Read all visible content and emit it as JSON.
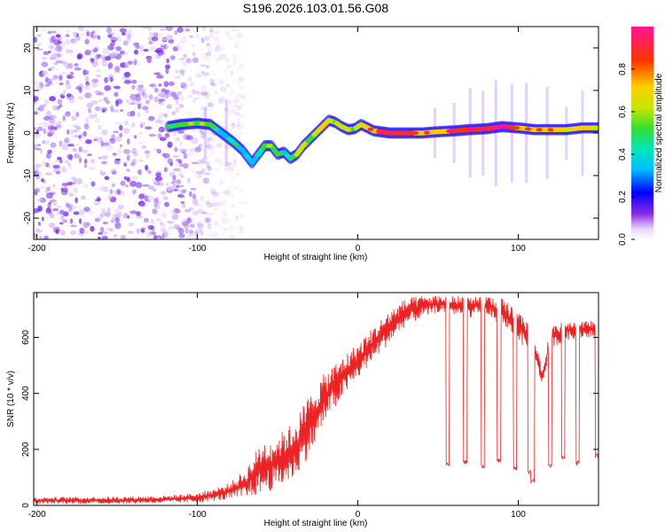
{
  "title": "S196.2026.103.01.56.G08",
  "chart_data": [
    {
      "type": "heatmap",
      "title": "S196.2026.103.01.56.G08",
      "xlabel": "Height of straight line (km)",
      "ylabel": "Frequency (Hz)",
      "xlim": [
        -202,
        150
      ],
      "ylim": [
        -25,
        25
      ],
      "xticks": [
        -200,
        -100,
        0,
        100
      ],
      "xtick_labels": [
        "-200",
        "-100",
        "0",
        "100"
      ],
      "yticks": [
        -20,
        -10,
        0,
        10,
        20
      ],
      "ytick_labels": [
        "-20",
        "-10",
        "0",
        "10",
        "20"
      ],
      "colorbar": {
        "label": "Normalized spectral amplitude",
        "range": [
          0,
          1
        ],
        "ticks": [
          0.0,
          0.2,
          0.4,
          0.6,
          0.8
        ],
        "tick_labels": [
          "0.0",
          "0.2",
          "0.4",
          "0.6",
          "0.8"
        ]
      },
      "ridge": {
        "x": [
          -118,
          -110,
          -100,
          -92,
          -85,
          -78,
          -72,
          -66,
          -62,
          -58,
          -54,
          -50,
          -46,
          -42,
          -38,
          -34,
          -30,
          -26,
          -22,
          -18,
          -14,
          -10,
          -6,
          -2,
          2,
          10,
          20,
          30,
          40,
          50,
          60,
          70,
          80,
          90,
          100,
          110,
          120,
          130,
          140,
          150
        ],
        "y": [
          1.5,
          2,
          2.3,
          2,
          0,
          -2,
          -4,
          -7,
          -5,
          -3,
          -3,
          -5,
          -4.5,
          -6,
          -5,
          -3,
          -1.5,
          0,
          1.5,
          3,
          2.5,
          1.5,
          0.8,
          1,
          2,
          0.5,
          0,
          0,
          0,
          0.3,
          0.5,
          0.8,
          1,
          1.5,
          1.2,
          0.8,
          0.8,
          0.8,
          1.2,
          1.2
        ],
        "amplitude": [
          0.4,
          0.45,
          0.5,
          0.45,
          0.3,
          0.35,
          0.3,
          0.25,
          0.35,
          0.45,
          0.5,
          0.5,
          0.3,
          0.4,
          0.55,
          0.6,
          0.45,
          0.55,
          0.65,
          0.6,
          0.5,
          0.6,
          0.55,
          0.5,
          0.6,
          0.7,
          0.8,
          0.75,
          0.7,
          0.65,
          0.75,
          0.85,
          0.8,
          0.9,
          0.7,
          0.65,
          0.7,
          0.6,
          0.65,
          0.6
        ]
      },
      "noise_region_x": [
        -202,
        -85
      ]
    },
    {
      "type": "line",
      "xlabel": "Height of straight line (km)",
      "ylabel": "SNR (10 * v/v)",
      "xlim": [
        -202,
        150
      ],
      "ylim": [
        0,
        760
      ],
      "xticks": [
        -200,
        -100,
        0,
        100
      ],
      "xtick_labels": [
        "-200",
        "-100",
        "0",
        "100"
      ],
      "yticks": [
        0,
        200,
        400,
        600
      ],
      "ytick_labels": [
        "0",
        "200",
        "400",
        "600"
      ],
      "series": [
        {
          "name": "SNR",
          "color": "#ee2222",
          "envelope": {
            "x": [
              -202,
              -150,
              -120,
              -100,
              -90,
              -80,
              -70,
              -60,
              -50,
              -40,
              -30,
              -20,
              -10,
              0,
              10,
              20,
              30,
              40,
              50,
              60,
              70,
              80,
              90,
              100,
              110,
              115,
              120,
              130,
              140,
              150
            ],
            "min": [
              5,
              5,
              8,
              10,
              15,
              20,
              25,
              40,
              60,
              90,
              180,
              300,
              380,
              450,
              520,
              580,
              640,
              670,
              690,
              680,
              670,
              680,
              640,
              590,
              510,
              430,
              560,
              590,
              600,
              600
            ],
            "max": [
              30,
              32,
              35,
              45,
              60,
              80,
              130,
              230,
              250,
              300,
              400,
              480,
              530,
              580,
              640,
              700,
              740,
              750,
              750,
              750,
              750,
              750,
              740,
              700,
              620,
              480,
              640,
              660,
              660,
              660
            ]
          },
          "dropouts": [
            {
              "x": 56,
              "snr": 140
            },
            {
              "x": 67,
              "snr": 150
            },
            {
              "x": 78,
              "snr": 130
            },
            {
              "x": 88,
              "snr": 150
            },
            {
              "x": 98,
              "snr": 125
            },
            {
              "x": 107,
              "snr": 110
            },
            {
              "x": 109,
              "snr": 80
            },
            {
              "x": 120,
              "snr": 135
            },
            {
              "x": 128,
              "snr": 165
            },
            {
              "x": 137,
              "snr": 145
            },
            {
              "x": 149,
              "snr": 170
            }
          ]
        }
      ]
    }
  ]
}
